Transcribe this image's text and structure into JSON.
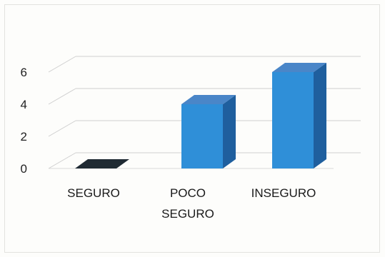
{
  "chart_data": {
    "type": "bar",
    "style": "3d-column",
    "categories": [
      "SEGURO",
      "POCO SEGURO",
      "INSEGURO"
    ],
    "category_label_lines": [
      [
        "SEGURO"
      ],
      [
        "POCO",
        "SEGURO"
      ],
      [
        "INSEGURO"
      ]
    ],
    "values": [
      0,
      4,
      6
    ],
    "ylim": [
      0,
      6
    ],
    "yticks": [
      "0",
      "2",
      "4",
      "6"
    ],
    "grid": true,
    "legend": "none",
    "colors": {
      "bar_front": "#2f8fd8",
      "bar_top": "#4a86c8",
      "bar_side": "#1f5f9e",
      "zero_bar": "#1f2a33",
      "grid": "#cfcfcf",
      "floor": "#d9d9d9"
    }
  }
}
